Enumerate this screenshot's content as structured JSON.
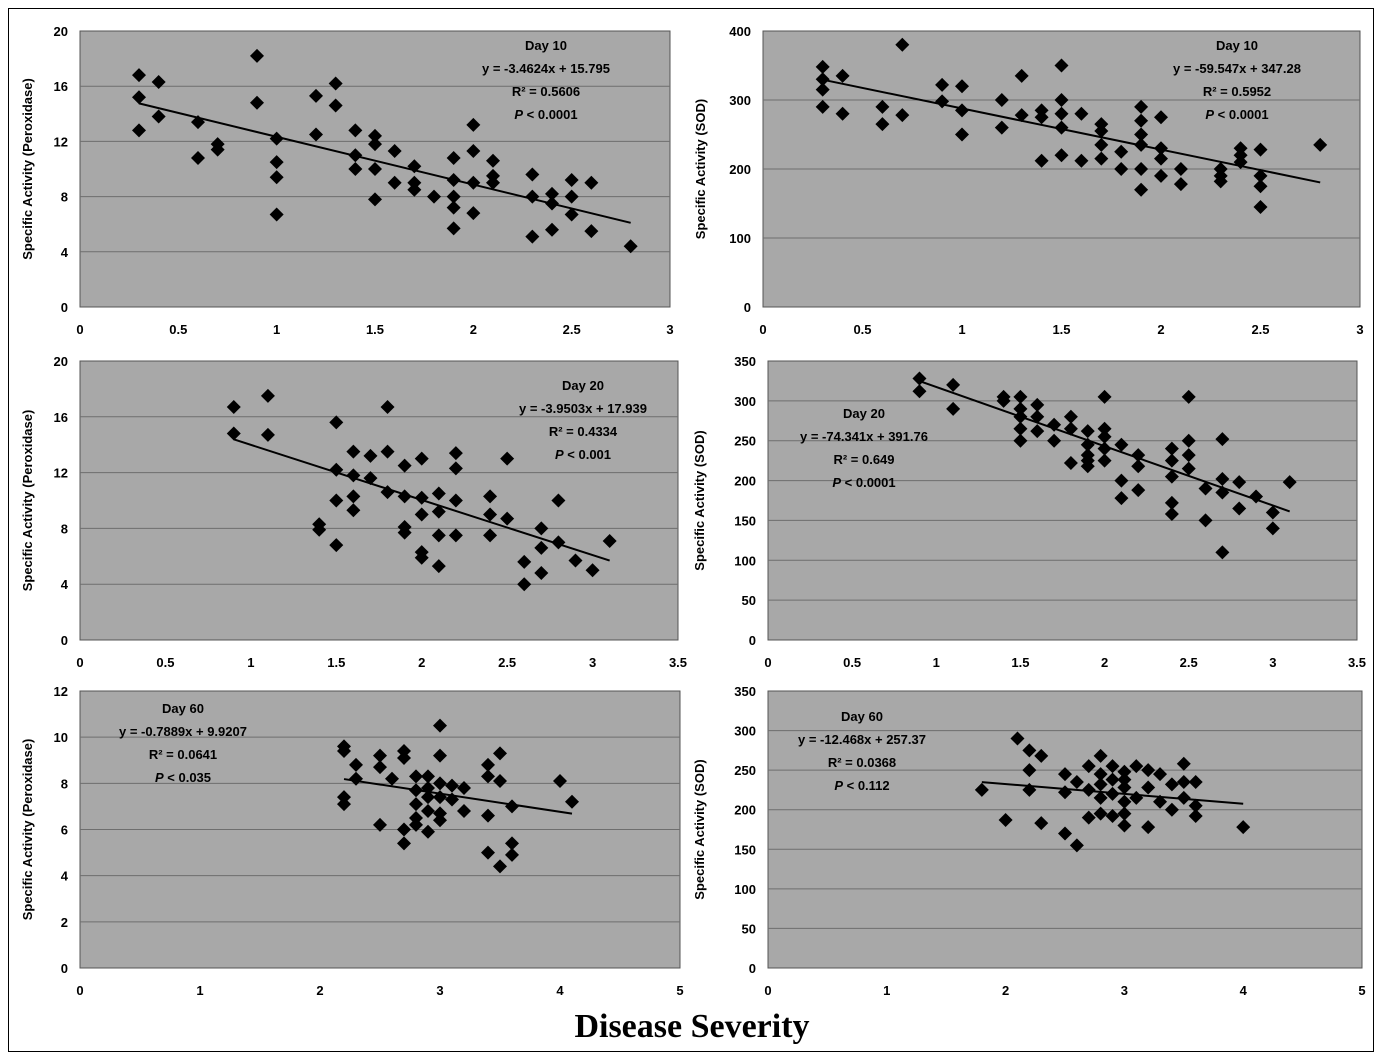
{
  "figure": {
    "shared_xlabel": "Disease Severity"
  },
  "chart_data": [
    {
      "type": "scatter",
      "ylabel": "Specific Activity (Peroxidase)",
      "xlim": [
        0,
        3
      ],
      "ylim": [
        0,
        20
      ],
      "xticks": [
        0,
        0.5,
        1,
        1.5,
        2,
        2.5,
        3
      ],
      "yticks": [
        0,
        4,
        8,
        12,
        16,
        20
      ],
      "annotation": {
        "title": "Day 10",
        "equation": "y = -3.4624x + 15.795",
        "r2": "R² = 0.5606",
        "p": "P < 0.0001"
      },
      "trendline": {
        "slope": -3.4624,
        "intercept": 15.795,
        "x_range": [
          0.3,
          2.8
        ]
      },
      "grid": true,
      "series": [
        {
          "x": [
            0.3,
            0.3,
            0.3,
            0.4,
            0.4,
            0.6,
            0.6,
            0.7,
            0.7,
            0.9,
            0.9,
            1.0,
            1.0,
            1.0,
            1.0,
            1.2,
            1.2,
            1.3,
            1.3,
            1.4,
            1.4,
            1.4,
            1.5,
            1.5,
            1.5,
            1.5,
            1.6,
            1.6,
            1.7,
            1.7,
            1.7,
            1.8,
            1.9,
            1.9,
            1.9,
            1.9,
            1.9,
            2.0,
            2.0,
            2.0,
            2.0,
            2.1,
            2.1,
            2.1,
            2.3,
            2.3,
            2.3,
            2.4,
            2.4,
            2.4,
            2.5,
            2.5,
            2.5,
            2.6,
            2.6,
            2.8
          ],
          "y": [
            16.8,
            15.2,
            12.8,
            16.3,
            13.8,
            13.4,
            10.8,
            11.8,
            11.4,
            18.2,
            14.8,
            12.2,
            10.5,
            9.4,
            6.7,
            15.3,
            12.5,
            16.2,
            14.6,
            12.8,
            11.0,
            10.0,
            12.4,
            11.8,
            10.0,
            7.8,
            11.3,
            9.0,
            10.2,
            9.0,
            8.5,
            8.0,
            10.8,
            9.2,
            8.0,
            7.2,
            5.7,
            13.2,
            11.3,
            9.0,
            6.8,
            10.6,
            9.5,
            9.0,
            9.6,
            8.0,
            5.1,
            8.2,
            7.5,
            5.6,
            9.2,
            8.0,
            6.7,
            9.0,
            5.5,
            4.4
          ]
        }
      ]
    },
    {
      "type": "scatter",
      "ylabel": "Specific Activity (SOD)",
      "xlim": [
        0,
        3
      ],
      "ylim": [
        0,
        400
      ],
      "xticks": [
        0,
        0.5,
        1,
        1.5,
        2,
        2.5,
        3
      ],
      "yticks": [
        0,
        100,
        200,
        300,
        400
      ],
      "annotation": {
        "title": "Day 10",
        "equation": "y = -59.547x + 347.28",
        "r2": "R² = 0.5952",
        "p": "P < 0.0001"
      },
      "trendline": {
        "slope": -59.547,
        "intercept": 347.28,
        "x_range": [
          0.3,
          2.8
        ]
      },
      "grid": true,
      "series": [
        {
          "x": [
            0.3,
            0.3,
            0.3,
            0.3,
            0.4,
            0.4,
            0.6,
            0.6,
            0.7,
            0.7,
            0.9,
            0.9,
            1.0,
            1.0,
            1.0,
            1.2,
            1.2,
            1.3,
            1.3,
            1.4,
            1.4,
            1.4,
            1.5,
            1.5,
            1.5,
            1.5,
            1.5,
            1.6,
            1.6,
            1.7,
            1.7,
            1.7,
            1.7,
            1.8,
            1.8,
            1.9,
            1.9,
            1.9,
            1.9,
            1.9,
            1.9,
            2.0,
            2.0,
            2.0,
            2.0,
            2.1,
            2.1,
            2.3,
            2.3,
            2.3,
            2.4,
            2.4,
            2.4,
            2.5,
            2.5,
            2.5,
            2.5,
            2.8
          ],
          "y": [
            348,
            330,
            315,
            290,
            335,
            280,
            290,
            265,
            380,
            278,
            322,
            298,
            320,
            285,
            250,
            300,
            260,
            335,
            278,
            285,
            275,
            212,
            350,
            300,
            280,
            260,
            220,
            280,
            212,
            265,
            255,
            235,
            215,
            225,
            200,
            290,
            270,
            250,
            235,
            200,
            170,
            275,
            230,
            215,
            190,
            200,
            178,
            200,
            190,
            182,
            230,
            220,
            210,
            228,
            190,
            175,
            145,
            235
          ]
        }
      ]
    },
    {
      "type": "scatter",
      "ylabel": "Specific Activity (Peroxidase)",
      "xlim": [
        0,
        3.5
      ],
      "ylim": [
        0,
        20
      ],
      "xticks": [
        0,
        0.5,
        1,
        1.5,
        2,
        2.5,
        3,
        3.5
      ],
      "yticks": [
        0,
        4,
        8,
        12,
        16,
        20
      ],
      "annotation": {
        "title": "Day 20",
        "equation": "y = -3.9503x + 17.939",
        "r2": "R² = 0.4334",
        "p": "P < 0.001"
      },
      "trendline": {
        "slope": -3.9503,
        "intercept": 17.939,
        "x_range": [
          0.9,
          3.1
        ]
      },
      "grid": true,
      "series": [
        {
          "x": [
            0.9,
            0.9,
            1.1,
            1.1,
            1.4,
            1.4,
            1.5,
            1.5,
            1.5,
            1.5,
            1.6,
            1.6,
            1.6,
            1.6,
            1.7,
            1.7,
            1.8,
            1.8,
            1.8,
            1.9,
            1.9,
            1.9,
            1.9,
            2.0,
            2.0,
            2.0,
            2.0,
            2.0,
            2.1,
            2.1,
            2.1,
            2.1,
            2.2,
            2.2,
            2.2,
            2.2,
            2.4,
            2.4,
            2.4,
            2.5,
            2.5,
            2.6,
            2.6,
            2.7,
            2.7,
            2.7,
            2.8,
            2.8,
            2.9,
            3.0,
            3.1
          ],
          "y": [
            16.7,
            14.8,
            17.5,
            14.7,
            8.3,
            7.9,
            15.6,
            12.2,
            10.0,
            6.8,
            13.5,
            11.8,
            10.3,
            9.3,
            13.2,
            11.6,
            16.7,
            13.5,
            10.6,
            12.5,
            10.3,
            8.1,
            7.7,
            13.0,
            10.2,
            9.0,
            6.3,
            5.9,
            10.5,
            9.2,
            7.5,
            5.3,
            13.4,
            12.3,
            10.0,
            7.5,
            10.3,
            9.0,
            7.5,
            13.0,
            8.7,
            5.6,
            4.0,
            8.0,
            6.6,
            4.8,
            10.0,
            7.0,
            5.7,
            5.0,
            7.1
          ]
        }
      ]
    },
    {
      "type": "scatter",
      "ylabel": "Specific Activity (SOD)",
      "xlim": [
        0,
        3.5
      ],
      "ylim": [
        0,
        350
      ],
      "xticks": [
        0,
        0.5,
        1,
        1.5,
        2,
        2.5,
        3,
        3.5
      ],
      "yticks": [
        0,
        50,
        100,
        150,
        200,
        250,
        300,
        350
      ],
      "annotation": {
        "title": "Day 20",
        "equation": "y = -74.341x + 391.76",
        "r2": "R² = 0.649",
        "p": "P < 0.0001"
      },
      "trendline": {
        "slope": -74.341,
        "intercept": 391.76,
        "x_range": [
          0.9,
          3.1
        ]
      },
      "grid": true,
      "series": [
        {
          "x": [
            0.9,
            0.9,
            1.1,
            1.1,
            1.4,
            1.4,
            1.5,
            1.5,
            1.5,
            1.5,
            1.5,
            1.6,
            1.6,
            1.6,
            1.7,
            1.7,
            1.8,
            1.8,
            1.8,
            1.9,
            1.9,
            1.9,
            1.9,
            1.9,
            2.0,
            2.0,
            2.0,
            2.0,
            2.0,
            2.1,
            2.1,
            2.1,
            2.2,
            2.2,
            2.2,
            2.4,
            2.4,
            2.4,
            2.4,
            2.4,
            2.5,
            2.5,
            2.5,
            2.5,
            2.6,
            2.6,
            2.7,
            2.7,
            2.7,
            2.7,
            2.8,
            2.8,
            2.9,
            3.0,
            3.0,
            3.1
          ],
          "y": [
            328,
            312,
            320,
            290,
            305,
            300,
            305,
            290,
            280,
            265,
            250,
            295,
            280,
            262,
            270,
            250,
            280,
            265,
            222,
            262,
            245,
            232,
            225,
            218,
            305,
            265,
            255,
            240,
            225,
            245,
            200,
            178,
            232,
            218,
            188,
            240,
            225,
            205,
            172,
            158,
            305,
            250,
            232,
            215,
            190,
            150,
            252,
            202,
            185,
            110,
            198,
            165,
            180,
            160,
            140,
            198
          ]
        }
      ]
    },
    {
      "type": "scatter",
      "ylabel": "Specific Activity (Peroxidase)",
      "xlim": [
        0,
        5
      ],
      "ylim": [
        0,
        12
      ],
      "xticks": [
        0,
        1,
        2,
        3,
        4,
        5
      ],
      "yticks": [
        0,
        2,
        4,
        6,
        8,
        10,
        12
      ],
      "annotation": {
        "title": "Day 60",
        "equation": "y = -0.7889x + 9.9207",
        "r2": "R² = 0.0641",
        "p": "P < 0.035"
      },
      "trendline": {
        "slope": -0.7889,
        "intercept": 9.9207,
        "x_range": [
          2.2,
          4.1
        ]
      },
      "grid": true,
      "series": [
        {
          "x": [
            2.2,
            2.2,
            2.2,
            2.2,
            2.3,
            2.3,
            2.5,
            2.5,
            2.5,
            2.6,
            2.7,
            2.7,
            2.7,
            2.7,
            2.8,
            2.8,
            2.8,
            2.8,
            2.8,
            2.9,
            2.9,
            2.9,
            2.9,
            2.9,
            3.0,
            3.0,
            3.0,
            3.0,
            3.0,
            3.0,
            3.1,
            3.1,
            3.2,
            3.2,
            3.4,
            3.4,
            3.4,
            3.4,
            3.5,
            3.5,
            3.5,
            3.6,
            3.6,
            3.6,
            4.0,
            4.1
          ],
          "y": [
            9.6,
            9.4,
            7.4,
            7.1,
            8.8,
            8.2,
            9.2,
            8.7,
            6.2,
            8.2,
            9.4,
            9.1,
            6.0,
            5.4,
            8.3,
            7.7,
            7.1,
            6.5,
            6.2,
            8.3,
            7.8,
            7.4,
            6.8,
            5.9,
            10.5,
            9.2,
            8.0,
            7.4,
            6.7,
            6.4,
            7.9,
            7.3,
            7.8,
            6.8,
            8.8,
            8.3,
            6.6,
            5.0,
            9.3,
            8.1,
            4.4,
            7.0,
            5.4,
            4.9,
            8.1,
            7.2
          ]
        }
      ]
    },
    {
      "type": "scatter",
      "ylabel": "Specific Activity (SOD)",
      "xlim": [
        0,
        5
      ],
      "ylim": [
        0,
        350
      ],
      "xticks": [
        0,
        1,
        2,
        3,
        4,
        5
      ],
      "yticks": [
        0,
        50,
        100,
        150,
        200,
        250,
        300,
        350
      ],
      "annotation": {
        "title": "Day 60",
        "equation": "y = -12.468x + 257.37",
        "r2": "R² = 0.0368",
        "p": "P < 0.112"
      },
      "trendline": {
        "slope": -12.468,
        "intercept": 257.37,
        "x_range": [
          1.8,
          4.0
        ]
      },
      "grid": true,
      "series": [
        {
          "x": [
            1.8,
            2.0,
            2.1,
            2.2,
            2.2,
            2.2,
            2.3,
            2.3,
            2.5,
            2.5,
            2.5,
            2.6,
            2.6,
            2.7,
            2.7,
            2.7,
            2.8,
            2.8,
            2.8,
            2.8,
            2.8,
            2.9,
            2.9,
            2.9,
            2.9,
            3.0,
            3.0,
            3.0,
            3.0,
            3.0,
            3.0,
            3.1,
            3.1,
            3.2,
            3.2,
            3.2,
            3.3,
            3.3,
            3.4,
            3.4,
            3.5,
            3.5,
            3.5,
            3.6,
            3.6,
            3.6,
            4.0
          ],
          "y": [
            225,
            187,
            290,
            275,
            250,
            225,
            268,
            183,
            245,
            222,
            170,
            235,
            155,
            255,
            225,
            190,
            268,
            245,
            232,
            215,
            195,
            255,
            238,
            220,
            192,
            248,
            238,
            228,
            210,
            195,
            180,
            255,
            215,
            250,
            228,
            178,
            245,
            210,
            232,
            200,
            258,
            235,
            215,
            235,
            205,
            192,
            178
          ]
        }
      ]
    }
  ]
}
